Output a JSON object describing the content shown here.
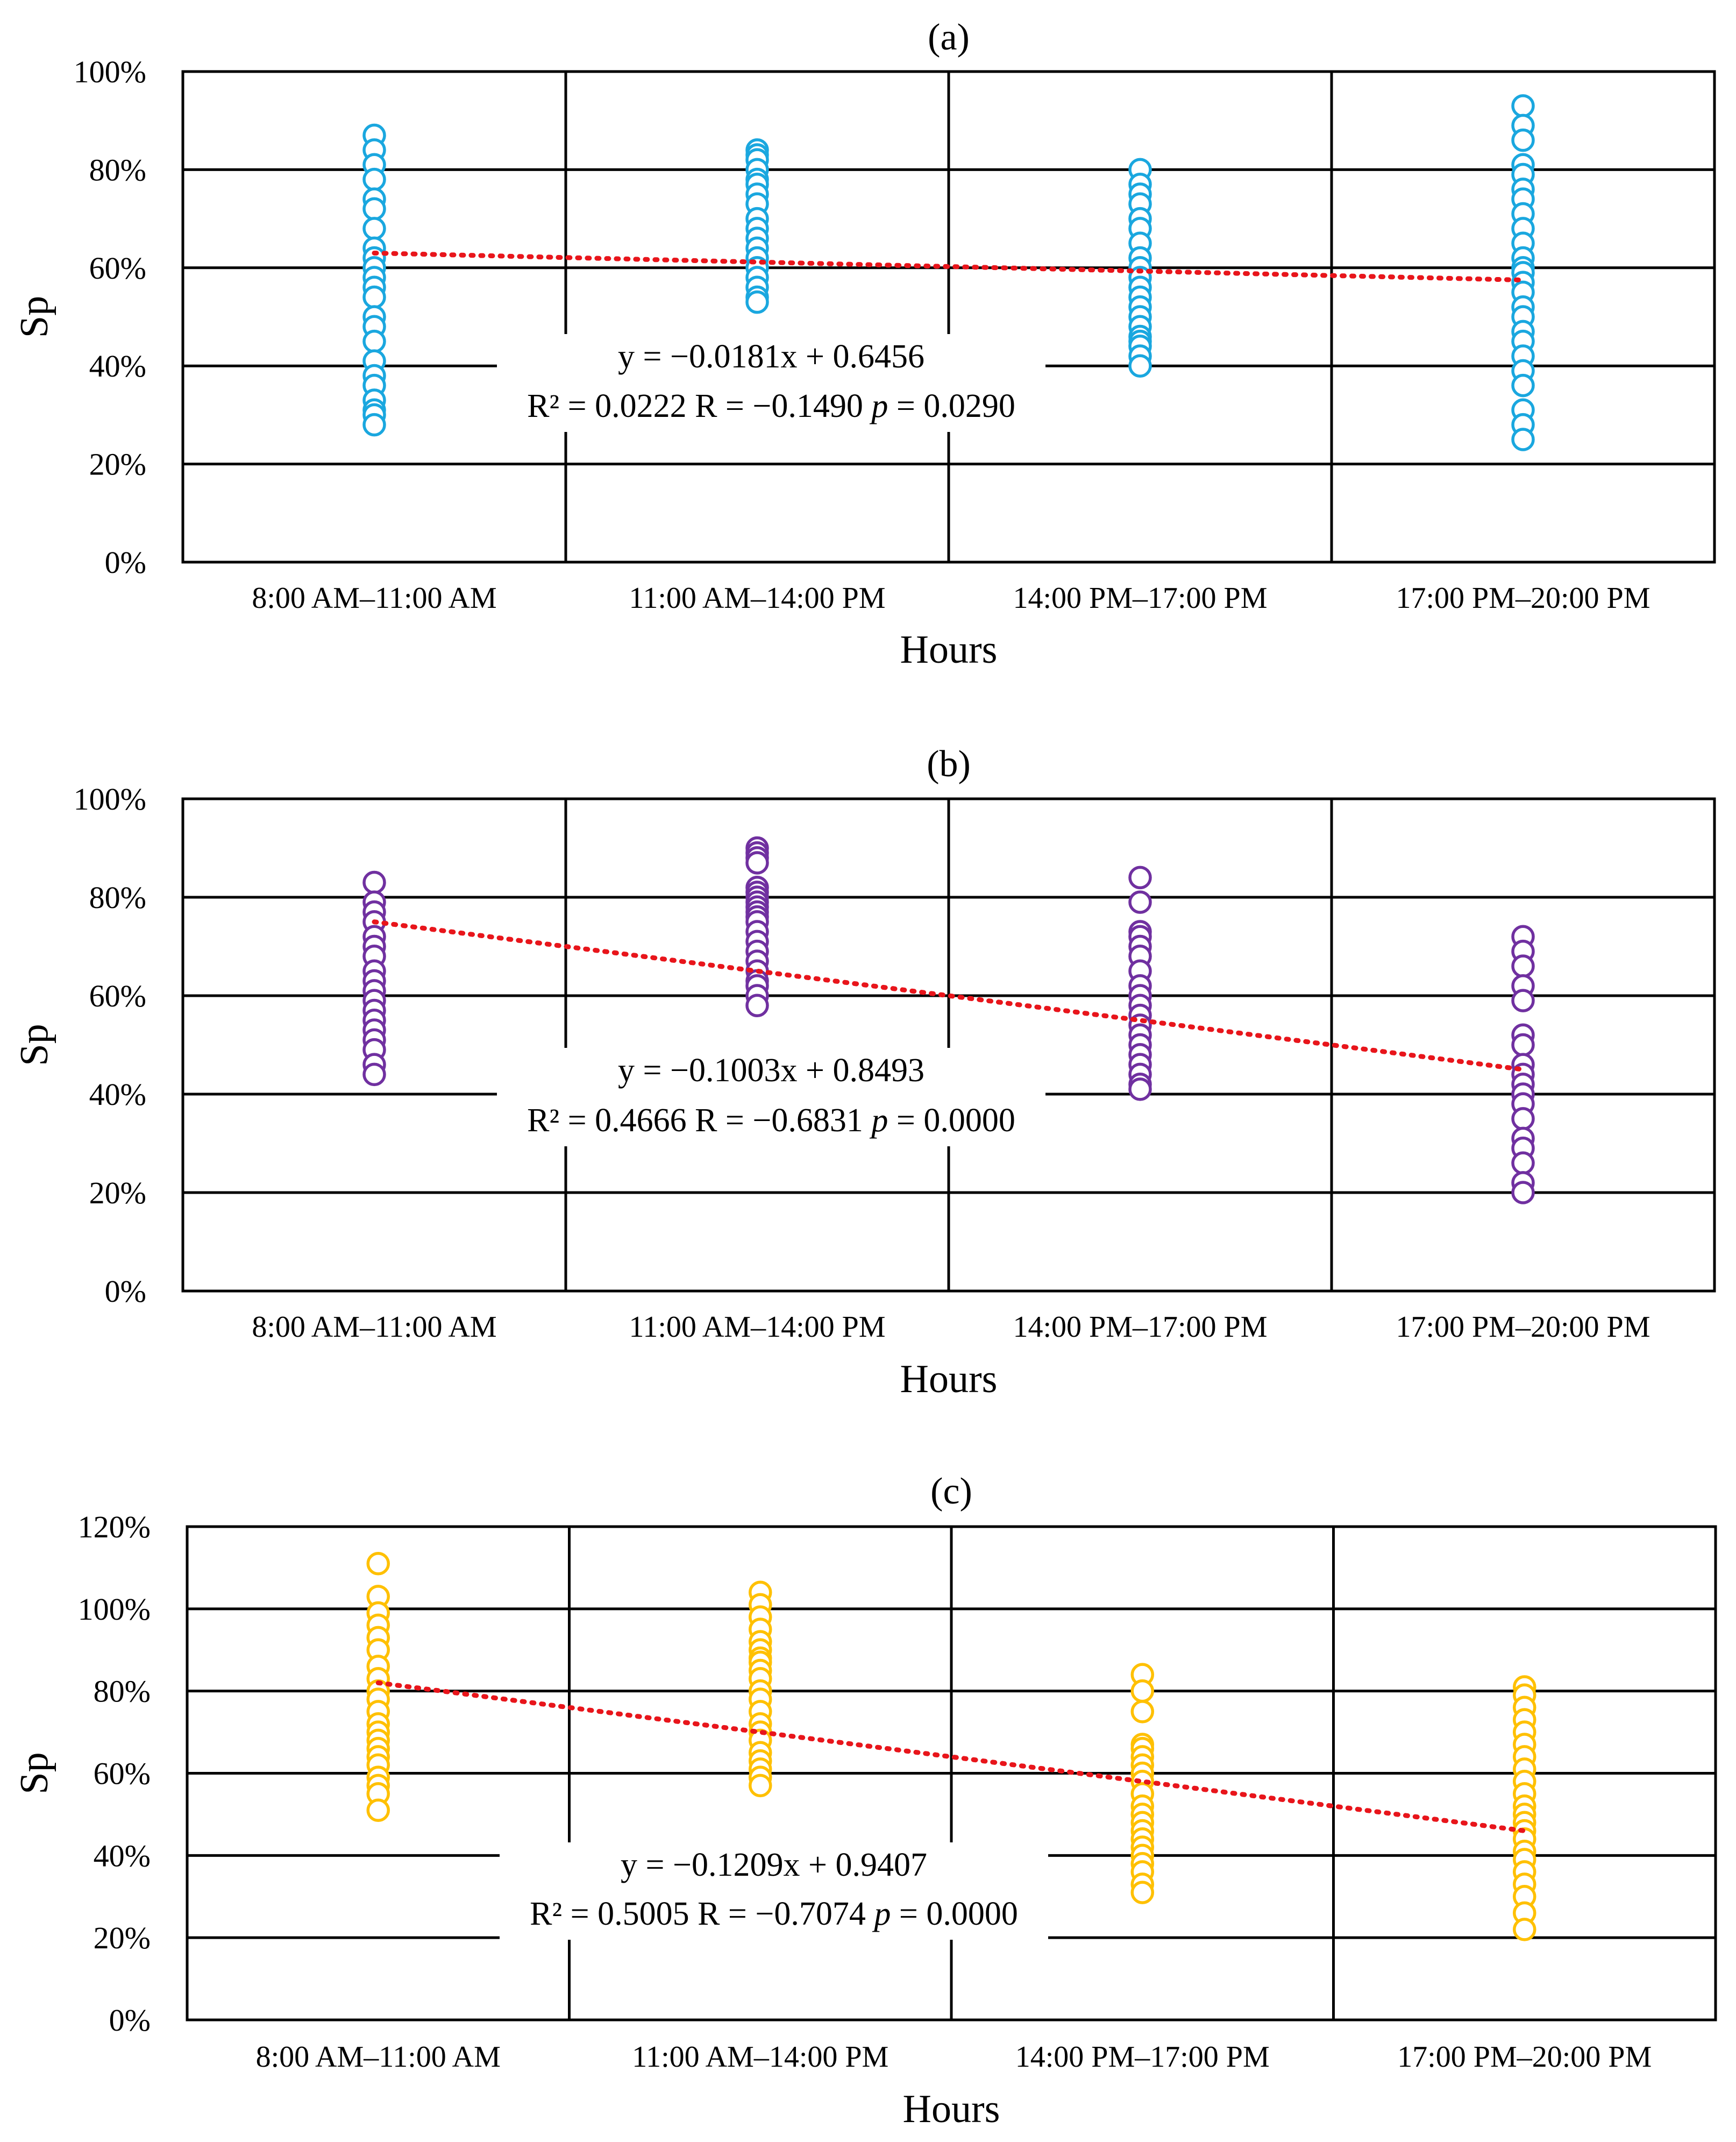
{
  "chart_data": [
    {
      "type": "scatter",
      "title": "(a)",
      "xlabel": "Hours",
      "ylabel": "Sp",
      "categories": [
        "8:00 AM–11:00 AM",
        "11:00 AM–14:00 PM",
        "14:00 PM–17:00 PM",
        "17:00 PM–20:00 PM"
      ],
      "ylim": [
        0,
        100
      ],
      "yticks": [
        "0%",
        "20%",
        "40%",
        "60%",
        "80%",
        "100%"
      ],
      "grid": true,
      "marker_color": "#1aa7df",
      "trend_color": "#e8151b",
      "series": [
        {
          "category": "8:00 AM–11:00 AM",
          "values": [
            87,
            84,
            81,
            78,
            74,
            72,
            68,
            64,
            62,
            60,
            58,
            56,
            54,
            50,
            48,
            45,
            41,
            38,
            36,
            33,
            31,
            30,
            28
          ]
        },
        {
          "category": "11:00 AM–14:00 PM",
          "values": [
            84,
            83,
            82,
            80,
            78,
            77,
            75,
            73,
            70,
            68,
            66,
            64,
            62,
            60,
            58,
            56,
            54,
            53
          ]
        },
        {
          "category": "14:00 PM–17:00 PM",
          "values": [
            80,
            77,
            75,
            73,
            70,
            68,
            65,
            62,
            60,
            58,
            56,
            54,
            52,
            50,
            48,
            46,
            45,
            44,
            42,
            40
          ]
        },
        {
          "category": "17:00 PM–20:00 PM",
          "values": [
            93,
            89,
            86,
            81,
            79,
            76,
            74,
            71,
            68,
            65,
            62,
            60,
            59,
            57,
            55,
            52,
            50,
            47,
            45,
            42,
            39,
            36,
            31,
            28,
            25
          ]
        }
      ],
      "trendline": {
        "start": 63,
        "end": 57.5
      },
      "annotation": {
        "equation": "y = −0.0181x + 0.6456",
        "stats_prefix": "R² = 0.0222 R = −0.1490 ",
        "p_symbol": "p",
        "p_value": " = 0.0290"
      }
    },
    {
      "type": "scatter",
      "title": "(b)",
      "xlabel": "Hours",
      "ylabel": "Sp",
      "categories": [
        "8:00 AM–11:00 AM",
        "11:00 AM–14:00 PM",
        "14:00 PM–17:00 PM",
        "17:00 PM–20:00 PM"
      ],
      "ylim": [
        0,
        100
      ],
      "yticks": [
        "0%",
        "20%",
        "40%",
        "60%",
        "80%",
        "100%"
      ],
      "grid": true,
      "marker_color": "#7030a0",
      "trend_color": "#e8151b",
      "series": [
        {
          "category": "8:00 AM–11:00 AM",
          "values": [
            83,
            79,
            77,
            75,
            72,
            70,
            68,
            65,
            63,
            61,
            59,
            57,
            55,
            53,
            51,
            49,
            46,
            44
          ]
        },
        {
          "category": "11:00 AM–14:00 PM",
          "values": [
            90,
            89,
            88,
            87,
            82,
            81,
            80,
            79,
            78,
            77,
            76,
            75,
            73,
            71,
            69,
            67,
            65,
            63,
            62,
            60,
            58
          ]
        },
        {
          "category": "14:00 PM–17:00 PM",
          "values": [
            84,
            79,
            73,
            72,
            70,
            68,
            65,
            62,
            60,
            58,
            56,
            54,
            52,
            50,
            48,
            46,
            44,
            42,
            41
          ]
        },
        {
          "category": "17:00 PM–20:00 PM",
          "values": [
            72,
            69,
            66,
            62,
            59,
            52,
            50,
            46,
            44,
            42,
            40,
            38,
            35,
            31,
            29,
            26,
            22,
            20
          ]
        }
      ],
      "trendline": {
        "start": 75,
        "end": 45
      },
      "annotation": {
        "equation": "y = −0.1003x + 0.8493",
        "stats_prefix": "R² = 0.4666 R = −0.6831 ",
        "p_symbol": "p",
        "p_value": " = 0.0000"
      }
    },
    {
      "type": "scatter",
      "title": "(c)",
      "xlabel": "Hours",
      "ylabel": "Sp",
      "categories": [
        "8:00 AM–11:00 AM",
        "11:00 AM–14:00 PM",
        "14:00 PM–17:00 PM",
        "17:00 PM–20:00 PM"
      ],
      "ylim": [
        0,
        120
      ],
      "yticks": [
        "0%",
        "20%",
        "40%",
        "60%",
        "80%",
        "100%",
        "120%"
      ],
      "grid": true,
      "marker_color": "#ffc000",
      "trend_color": "#e8151b",
      "series": [
        {
          "category": "8:00 AM–11:00 AM",
          "values": [
            111,
            103,
            99,
            96,
            93,
            90,
            86,
            83,
            80,
            78,
            75,
            72,
            70,
            68,
            66,
            64,
            62,
            59,
            57,
            55,
            51
          ]
        },
        {
          "category": "11:00 AM–14:00 PM",
          "values": [
            104,
            101,
            98,
            95,
            92,
            90,
            88,
            87,
            85,
            83,
            80,
            78,
            75,
            72,
            70,
            68,
            65,
            63,
            61,
            59,
            57
          ]
        },
        {
          "category": "14:00 PM–17:00 PM",
          "values": [
            84,
            80,
            75,
            67,
            66,
            64,
            62,
            60,
            58,
            55,
            52,
            50,
            48,
            46,
            44,
            42,
            40,
            38,
            36,
            33,
            31
          ]
        },
        {
          "category": "17:00 PM–20:00 PM",
          "values": [
            81,
            79,
            76,
            73,
            70,
            67,
            64,
            61,
            58,
            55,
            52,
            50,
            48,
            46,
            44,
            41,
            39,
            36,
            33,
            30,
            26,
            22
          ]
        }
      ],
      "trendline": {
        "start": 82,
        "end": 46
      },
      "annotation": {
        "equation": "y = −0.1209x + 0.9407",
        "stats_prefix": "R² = 0.5005 R = −0.7074 ",
        "p_symbol": "p",
        "p_value": " = 0.0000"
      }
    }
  ]
}
